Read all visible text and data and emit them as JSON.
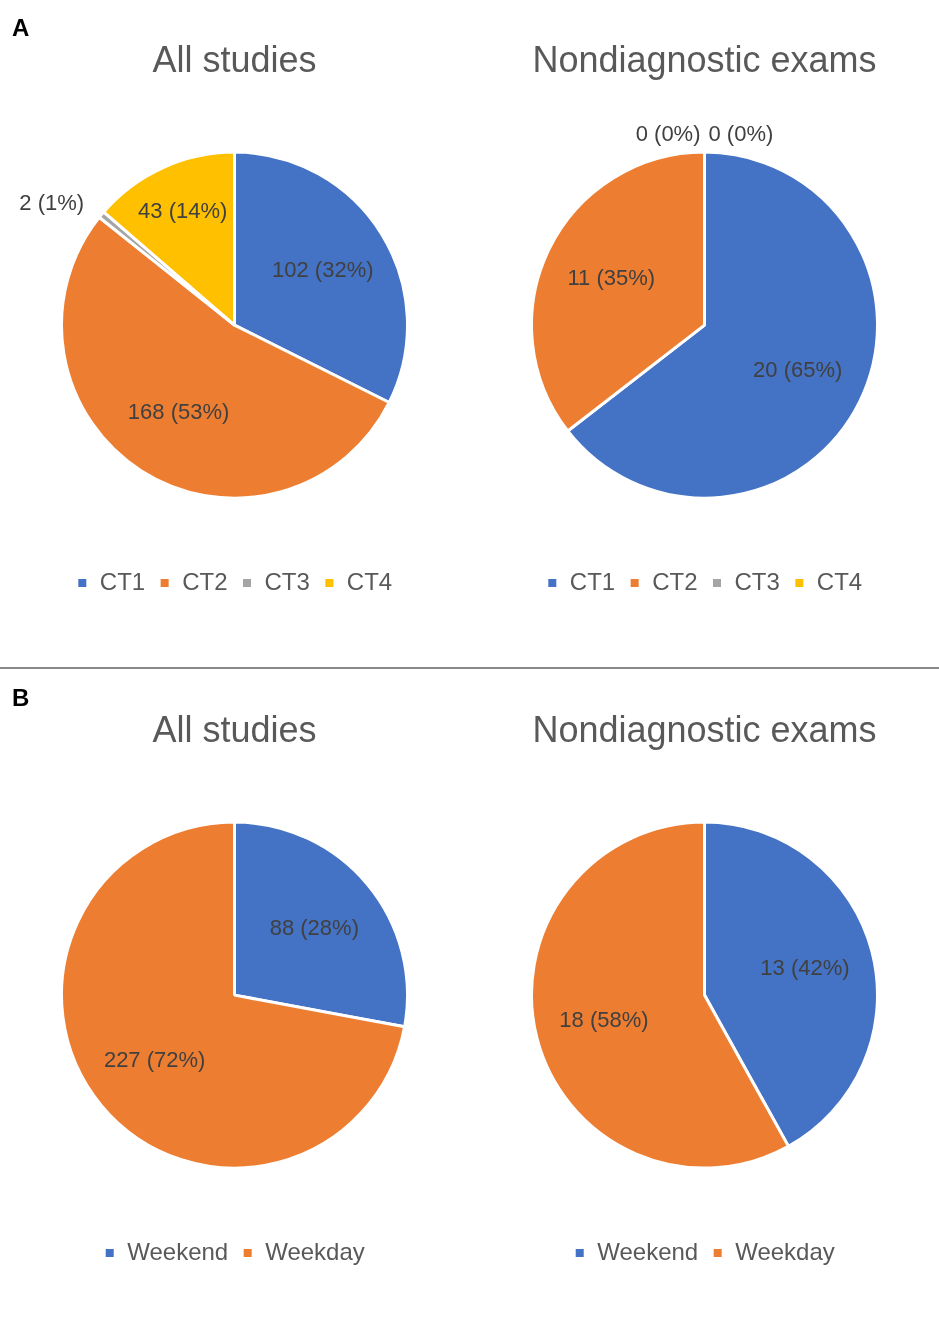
{
  "chart_data": [
    {
      "type": "pie",
      "title": "All studies",
      "annotations": [
        "A"
      ],
      "categories": [
        "CT1",
        "CT2",
        "CT3",
        "CT4"
      ],
      "values": [
        102,
        168,
        2,
        43
      ],
      "value_labels": [
        "102 (32%)",
        "168 (53%)",
        "2 (1%)",
        "43 (14%)"
      ],
      "colors": [
        "#4472c4",
        "#ed7d31",
        "#a5a5a5",
        "#ffc000"
      ],
      "legend": "bottom"
    },
    {
      "type": "pie",
      "title": "Nondiagnostic exams",
      "categories": [
        "CT1",
        "CT2",
        "CT3",
        "CT4"
      ],
      "values": [
        20,
        11,
        0,
        0
      ],
      "value_labels": [
        "20 (65%)",
        "11 (35%)",
        "0 (0%)",
        "0 (0%)"
      ],
      "colors": [
        "#4472c4",
        "#ed7d31",
        "#a5a5a5",
        "#ffc000"
      ],
      "legend": "bottom"
    },
    {
      "type": "pie",
      "title": "All studies",
      "annotations": [
        "B"
      ],
      "categories": [
        "Weekend",
        "Weekday"
      ],
      "values": [
        88,
        227
      ],
      "value_labels": [
        "88 (28%)",
        "227 (72%)"
      ],
      "colors": [
        "#4472c4",
        "#ed7d31"
      ],
      "legend": "bottom"
    },
    {
      "type": "pie",
      "title": "Nondiagnostic exams",
      "categories": [
        "Weekend",
        "Weekday"
      ],
      "values": [
        13,
        18
      ],
      "value_labels": [
        "13 (42%)",
        "18 (58%)"
      ],
      "colors": [
        "#4472c4",
        "#ed7d31"
      ],
      "legend": "bottom"
    }
  ]
}
